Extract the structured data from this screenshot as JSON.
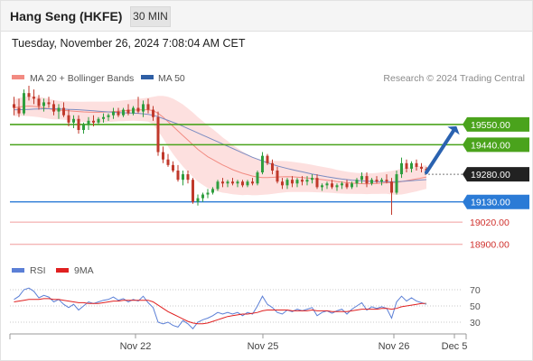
{
  "header": {
    "title": "Hang Seng (HKFE)",
    "interval": "30 MIN",
    "datetime": "Tuesday, November 26, 2024 7:08:04 AM CET"
  },
  "legend": {
    "ma20_label": "MA 20 + Bollinger Bands",
    "ma50_label": "MA 50",
    "copyright": "Research © 2024 Trading Central",
    "ma20_color": "#f28b82",
    "ma50_color": "#2f5fa5"
  },
  "rsi_legend": {
    "rsi_label": "RSI",
    "ma9_label": "9MA",
    "rsi_color": "#5b7fd6",
    "ma9_color": "#e02020"
  },
  "colors": {
    "up": "#2e9e3e",
    "down": "#c0392b",
    "band_fill": "#fde0df",
    "resistance": "#4aa31c",
    "support": "#2b7bd6",
    "target": "#f19c9c",
    "current": "#222222",
    "arrow": "#2a62b0"
  },
  "chart_data": [
    {
      "type": "candlestick",
      "ylim": [
        18830,
        19760
      ],
      "x_labels": [
        "Nov 22",
        "Nov 25",
        "Nov 26",
        "Dec 5"
      ],
      "levels": [
        {
          "label": "19550.00",
          "value": 19550,
          "kind": "resistance"
        },
        {
          "label": "19440.00",
          "value": 19440,
          "kind": "resistance"
        },
        {
          "label": "19280.00",
          "value": 19280,
          "kind": "current"
        },
        {
          "label": "19130.00",
          "value": 19130,
          "kind": "support"
        },
        {
          "label": "19020.00",
          "value": 19020,
          "kind": "target"
        },
        {
          "label": "18900.00",
          "value": 18900,
          "kind": "target"
        }
      ],
      "projection": {
        "from": 19280,
        "to": 19555
      },
      "ohlc": [
        [
          19660,
          19700,
          19600,
          19640
        ],
        [
          19640,
          19690,
          19590,
          19610
        ],
        [
          19610,
          19740,
          19600,
          19720
        ],
        [
          19720,
          19760,
          19680,
          19700
        ],
        [
          19700,
          19740,
          19660,
          19690
        ],
        [
          19690,
          19710,
          19630,
          19650
        ],
        [
          19650,
          19690,
          19620,
          19670
        ],
        [
          19670,
          19700,
          19640,
          19660
        ],
        [
          19660,
          19680,
          19600,
          19620
        ],
        [
          19620,
          19660,
          19580,
          19640
        ],
        [
          19640,
          19670,
          19590,
          19600
        ],
        [
          19600,
          19630,
          19540,
          19560
        ],
        [
          19560,
          19600,
          19530,
          19580
        ],
        [
          19580,
          19600,
          19500,
          19520
        ],
        [
          19520,
          19560,
          19500,
          19550
        ],
        [
          19550,
          19590,
          19520,
          19570
        ],
        [
          19570,
          19600,
          19540,
          19560
        ],
        [
          19560,
          19590,
          19550,
          19580
        ],
        [
          19580,
          19610,
          19560,
          19590
        ],
        [
          19590,
          19610,
          19570,
          19600
        ],
        [
          19600,
          19640,
          19580,
          19620
        ],
        [
          19620,
          19640,
          19590,
          19600
        ],
        [
          19600,
          19640,
          19590,
          19630
        ],
        [
          19630,
          19660,
          19600,
          19610
        ],
        [
          19610,
          19650,
          19600,
          19640
        ],
        [
          19640,
          19700,
          19610,
          19620
        ],
        [
          19620,
          19680,
          19590,
          19660
        ],
        [
          19660,
          19690,
          19610,
          19630
        ],
        [
          19630,
          19650,
          19570,
          19590
        ],
        [
          19590,
          19620,
          19380,
          19400
        ],
        [
          19400,
          19430,
          19340,
          19360
        ],
        [
          19360,
          19390,
          19320,
          19330
        ],
        [
          19330,
          19350,
          19290,
          19300
        ],
        [
          19300,
          19330,
          19240,
          19250
        ],
        [
          19250,
          19300,
          19220,
          19280
        ],
        [
          19280,
          19300,
          19230,
          19250
        ],
        [
          19250,
          19260,
          19120,
          19130
        ],
        [
          19130,
          19170,
          19110,
          19150
        ],
        [
          19150,
          19180,
          19130,
          19170
        ],
        [
          19170,
          19200,
          19150,
          19180
        ],
        [
          19180,
          19210,
          19170,
          19200
        ],
        [
          19200,
          19250,
          19190,
          19240
        ],
        [
          19240,
          19260,
          19210,
          19230
        ],
        [
          19230,
          19250,
          19210,
          19240
        ],
        [
          19240,
          19260,
          19220,
          19230
        ],
        [
          19230,
          19250,
          19210,
          19240
        ],
        [
          19240,
          19250,
          19210,
          19220
        ],
        [
          19220,
          19250,
          19210,
          19240
        ],
        [
          19240,
          19260,
          19220,
          19230
        ],
        [
          19230,
          19300,
          19220,
          19290
        ],
        [
          19290,
          19400,
          19280,
          19380
        ],
        [
          19380,
          19390,
          19330,
          19340
        ],
        [
          19340,
          19360,
          19280,
          19300
        ],
        [
          19300,
          19320,
          19230,
          19240
        ],
        [
          19240,
          19260,
          19200,
          19220
        ],
        [
          19220,
          19260,
          19200,
          19250
        ],
        [
          19250,
          19270,
          19210,
          19230
        ],
        [
          19230,
          19260,
          19210,
          19250
        ],
        [
          19250,
          19270,
          19220,
          19240
        ],
        [
          19240,
          19270,
          19220,
          19250
        ],
        [
          19250,
          19280,
          19230,
          19260
        ],
        [
          19260,
          19280,
          19200,
          19210
        ],
        [
          19210,
          19230,
          19190,
          19220
        ],
        [
          19220,
          19240,
          19200,
          19230
        ],
        [
          19230,
          19250,
          19200,
          19210
        ],
        [
          19210,
          19230,
          19190,
          19220
        ],
        [
          19220,
          19240,
          19200,
          19230
        ],
        [
          19230,
          19250,
          19200,
          19210
        ],
        [
          19210,
          19240,
          19200,
          19230
        ],
        [
          19230,
          19260,
          19210,
          19250
        ],
        [
          19250,
          19290,
          19230,
          19270
        ],
        [
          19270,
          19290,
          19210,
          19230
        ],
        [
          19230,
          19260,
          19220,
          19250
        ],
        [
          19250,
          19270,
          19230,
          19240
        ],
        [
          19240,
          19260,
          19220,
          19250
        ],
        [
          19250,
          19280,
          19230,
          19240
        ],
        [
          19240,
          19260,
          19060,
          19180
        ],
        [
          19180,
          19300,
          19170,
          19280
        ],
        [
          19280,
          19370,
          19260,
          19340
        ],
        [
          19340,
          19360,
          19290,
          19310
        ],
        [
          19310,
          19350,
          19290,
          19340
        ],
        [
          19340,
          19360,
          19300,
          19320
        ],
        [
          19320,
          19340,
          19290,
          19310
        ],
        [
          19310,
          19320,
          19280,
          19290
        ]
      ],
      "ma20": [
        19640,
        19645,
        19648,
        19650,
        19648,
        19645,
        19640,
        19635,
        19630,
        19628,
        19626,
        19624,
        19622,
        19620,
        19618,
        19617,
        19616,
        19616,
        19617,
        19618,
        19620,
        19622,
        19624,
        19626,
        19628,
        19629,
        19630,
        19630,
        19625,
        19610,
        19590,
        19565,
        19540,
        19515,
        19490,
        19465,
        19440,
        19415,
        19395,
        19375,
        19360,
        19345,
        19330,
        19318,
        19305,
        19295,
        19285,
        19278,
        19270,
        19265,
        19262,
        19262,
        19263,
        19265,
        19266,
        19267,
        19266,
        19264,
        19262,
        19260,
        19257,
        19254,
        19251,
        19248,
        19245,
        19240,
        19237,
        19234,
        19232,
        19230,
        19229,
        19228,
        19229,
        19230,
        19232,
        19234,
        19234,
        19236,
        19240,
        19245,
        19250,
        19255,
        19260,
        19265
      ],
      "ma50": [
        19630,
        19630,
        19631,
        19632,
        19633,
        19634,
        19635,
        19635,
        19635,
        19634,
        19633,
        19632,
        19631,
        19630,
        19628,
        19626,
        19624,
        19622,
        19620,
        19618,
        19616,
        19614,
        19613,
        19612,
        19611,
        19610,
        19608,
        19605,
        19600,
        19592,
        19582,
        19572,
        19562,
        19552,
        19540,
        19528,
        19516,
        19504,
        19492,
        19480,
        19468,
        19456,
        19444,
        19432,
        19420,
        19408,
        19396,
        19384,
        19372,
        19362,
        19352,
        19342,
        19333,
        19325,
        19318,
        19311,
        19305,
        19299,
        19293,
        19287,
        19281,
        19276,
        19271,
        19266,
        19262,
        19258,
        19254,
        19251,
        19248,
        19246,
        19244,
        19242,
        19241,
        19240,
        19239,
        19239,
        19239,
        19240,
        19241,
        19243,
        19245,
        19247,
        19249,
        19251
      ],
      "bb_width": [
        45,
        48,
        52,
        55,
        56,
        56,
        55,
        54,
        52,
        50,
        50,
        51,
        52,
        53,
        55,
        57,
        58,
        58,
        57,
        56,
        55,
        55,
        56,
        57,
        58,
        60,
        62,
        65,
        75,
        95,
        115,
        135,
        150,
        160,
        168,
        172,
        175,
        175,
        173,
        170,
        165,
        158,
        150,
        142,
        134,
        126,
        118,
        110,
        104,
        98,
        94,
        92,
        90,
        88,
        86,
        84,
        82,
        80,
        78,
        76,
        74,
        72,
        70,
        68,
        66,
        64,
        62,
        60,
        58,
        57,
        56,
        56,
        56,
        57,
        58,
        60,
        64,
        68,
        70,
        70,
        69,
        68,
        66,
        64
      ]
    },
    {
      "type": "line",
      "ylim": [
        20,
        80
      ],
      "y_ticks": [
        70,
        50,
        30
      ],
      "series": [
        {
          "name": "RSI",
          "values": [
            58,
            62,
            70,
            72,
            68,
            60,
            63,
            61,
            55,
            58,
            52,
            48,
            52,
            45,
            50,
            55,
            53,
            55,
            57,
            58,
            61,
            57,
            59,
            55,
            58,
            56,
            62,
            54,
            48,
            30,
            28,
            30,
            26,
            24,
            32,
            28,
            22,
            30,
            33,
            35,
            38,
            42,
            40,
            42,
            40,
            42,
            38,
            42,
            40,
            50,
            62,
            52,
            48,
            42,
            40,
            45,
            43,
            46,
            44,
            46,
            48,
            38,
            42,
            44,
            41,
            44,
            46,
            40,
            46,
            50,
            54,
            45,
            49,
            47,
            49,
            47,
            35,
            55,
            62,
            56,
            60,
            56,
            54,
            52
          ]
        },
        {
          "name": "9MA",
          "values": [
            55,
            56,
            57,
            58,
            58,
            58,
            59,
            59,
            58,
            58,
            57,
            56,
            55,
            54,
            54,
            53,
            53,
            53,
            54,
            55,
            56,
            56,
            57,
            57,
            57,
            57,
            57,
            57,
            55,
            51,
            47,
            43,
            40,
            37,
            34,
            31,
            29,
            28,
            28,
            29,
            31,
            33,
            35,
            37,
            38,
            39,
            40,
            40,
            41,
            42,
            44,
            45,
            45,
            45,
            45,
            45,
            44,
            44,
            44,
            44,
            45,
            44,
            44,
            44,
            43,
            43,
            43,
            43,
            44,
            45,
            46,
            46,
            46,
            46,
            47,
            47,
            46,
            47,
            49,
            50,
            51,
            52,
            53,
            53
          ]
        }
      ]
    }
  ]
}
